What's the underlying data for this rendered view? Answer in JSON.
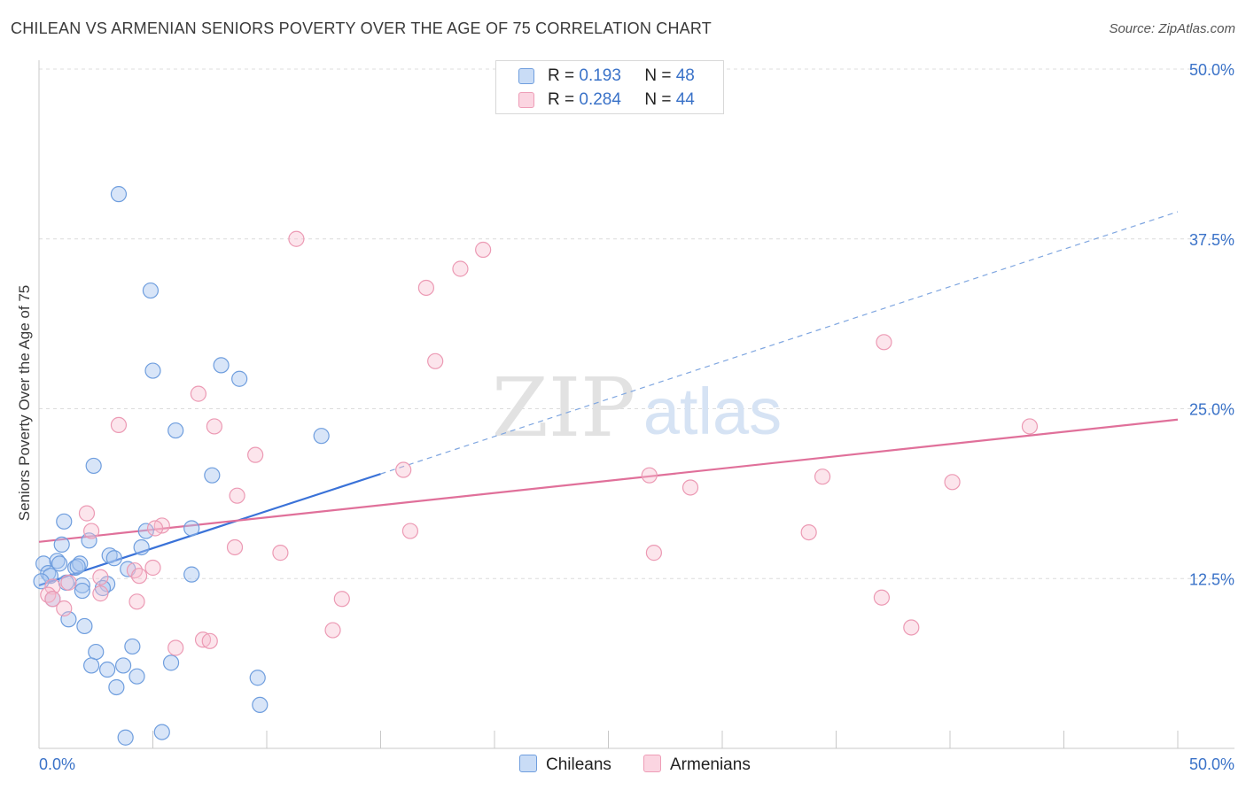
{
  "title": "CHILEAN VS ARMENIAN SENIORS POVERTY OVER THE AGE OF 75 CORRELATION CHART",
  "source": "Source: ZipAtlas.com",
  "watermark": {
    "zip": "ZIP",
    "atlas": "atlas"
  },
  "legend": {
    "r_label": "R =",
    "n_label": "N =",
    "rows": [
      {
        "r": "0.193",
        "n": "48",
        "color": "#a8c6ef",
        "stroke": "#5b8fd6"
      },
      {
        "r": "0.284",
        "n": "44",
        "color": "#f7bfd0",
        "stroke": "#e889a8"
      }
    ]
  },
  "bottom_legend": [
    "Chileans",
    "Armenians"
  ],
  "colors": {
    "blue": "#3a72d8",
    "pink": "#e0709a",
    "tick_text": "#3a72c8",
    "grid": "#dcdcdc"
  },
  "chart_data": {
    "type": "scatter",
    "title": "CHILEAN VS ARMENIAN SENIORS POVERTY OVER THE AGE OF 75 CORRELATION CHART",
    "xlabel": "",
    "ylabel": "Seniors Poverty Over the Age of 75",
    "xlim": [
      0,
      50
    ],
    "ylim": [
      0,
      50
    ],
    "x_tick_labels": [
      "0.0%",
      "50.0%"
    ],
    "y_tick_labels": [
      "12.5%",
      "25.0%",
      "37.5%",
      "50.0%"
    ],
    "y_ticks": [
      12.5,
      25.0,
      37.5,
      50.0
    ],
    "grid": true,
    "legend_position": "top-center",
    "series": [
      {
        "name": "Chileans",
        "color": "#a8c6ef",
        "trend": {
          "x0": 0,
          "y0": 12.0,
          "x1": 15,
          "y1": 20.2,
          "dash_to_x": 50,
          "dash_to_y": 39.5
        },
        "points": [
          [
            3.5,
            40.8
          ],
          [
            4.9,
            33.7
          ],
          [
            5.0,
            27.8
          ],
          [
            8.0,
            28.2
          ],
          [
            8.8,
            27.2
          ],
          [
            6.0,
            23.4
          ],
          [
            12.4,
            23.0
          ],
          [
            2.4,
            20.8
          ],
          [
            7.6,
            20.1
          ],
          [
            1.1,
            16.7
          ],
          [
            4.7,
            16.0
          ],
          [
            6.7,
            16.2
          ],
          [
            1.0,
            15.0
          ],
          [
            2.2,
            15.3
          ],
          [
            4.5,
            14.8
          ],
          [
            3.1,
            14.2
          ],
          [
            3.3,
            14.0
          ],
          [
            0.2,
            13.6
          ],
          [
            0.8,
            13.8
          ],
          [
            0.9,
            13.6
          ],
          [
            1.6,
            13.3
          ],
          [
            1.8,
            13.6
          ],
          [
            1.7,
            13.4
          ],
          [
            3.9,
            13.2
          ],
          [
            0.4,
            12.9
          ],
          [
            0.5,
            12.7
          ],
          [
            0.1,
            12.3
          ],
          [
            1.2,
            12.2
          ],
          [
            1.9,
            12.0
          ],
          [
            3.0,
            12.1
          ],
          [
            2.8,
            11.8
          ],
          [
            1.9,
            11.6
          ],
          [
            6.7,
            12.8
          ],
          [
            0.6,
            11.0
          ],
          [
            1.3,
            9.5
          ],
          [
            2.0,
            9.0
          ],
          [
            2.5,
            7.1
          ],
          [
            4.1,
            7.5
          ],
          [
            2.3,
            6.1
          ],
          [
            3.0,
            5.8
          ],
          [
            3.7,
            6.1
          ],
          [
            4.3,
            5.3
          ],
          [
            5.8,
            6.3
          ],
          [
            3.4,
            4.5
          ],
          [
            9.6,
            5.2
          ],
          [
            9.7,
            3.2
          ],
          [
            3.8,
            0.8
          ],
          [
            5.4,
            1.2
          ]
        ]
      },
      {
        "name": "Armenians",
        "color": "#f7bfd0",
        "trend": {
          "x0": 0,
          "y0": 15.2,
          "x1": 50,
          "y1": 24.2
        },
        "points": [
          [
            11.3,
            37.5
          ],
          [
            19.5,
            36.7
          ],
          [
            18.5,
            35.3
          ],
          [
            17.0,
            33.9
          ],
          [
            17.4,
            28.5
          ],
          [
            37.1,
            29.9
          ],
          [
            7.0,
            26.1
          ],
          [
            3.5,
            23.8
          ],
          [
            7.7,
            23.7
          ],
          [
            43.5,
            23.7
          ],
          [
            9.5,
            21.6
          ],
          [
            16.0,
            20.5
          ],
          [
            26.8,
            20.1
          ],
          [
            34.4,
            20.0
          ],
          [
            40.1,
            19.6
          ],
          [
            28.6,
            19.2
          ],
          [
            8.7,
            18.6
          ],
          [
            2.1,
            17.3
          ],
          [
            5.4,
            16.4
          ],
          [
            5.1,
            16.2
          ],
          [
            2.3,
            16.0
          ],
          [
            16.3,
            16.0
          ],
          [
            33.8,
            15.9
          ],
          [
            8.6,
            14.8
          ],
          [
            10.6,
            14.4
          ],
          [
            27.0,
            14.4
          ],
          [
            4.2,
            13.1
          ],
          [
            5.0,
            13.3
          ],
          [
            4.4,
            12.7
          ],
          [
            2.7,
            12.6
          ],
          [
            1.3,
            12.2
          ],
          [
            0.6,
            11.9
          ],
          [
            2.7,
            11.4
          ],
          [
            0.4,
            11.3
          ],
          [
            0.6,
            11.0
          ],
          [
            13.3,
            11.0
          ],
          [
            37.0,
            11.1
          ],
          [
            1.1,
            10.3
          ],
          [
            4.3,
            10.8
          ],
          [
            12.9,
            8.7
          ],
          [
            38.3,
            8.9
          ],
          [
            7.2,
            8.0
          ],
          [
            7.5,
            7.9
          ],
          [
            6.0,
            7.4
          ]
        ]
      }
    ]
  }
}
